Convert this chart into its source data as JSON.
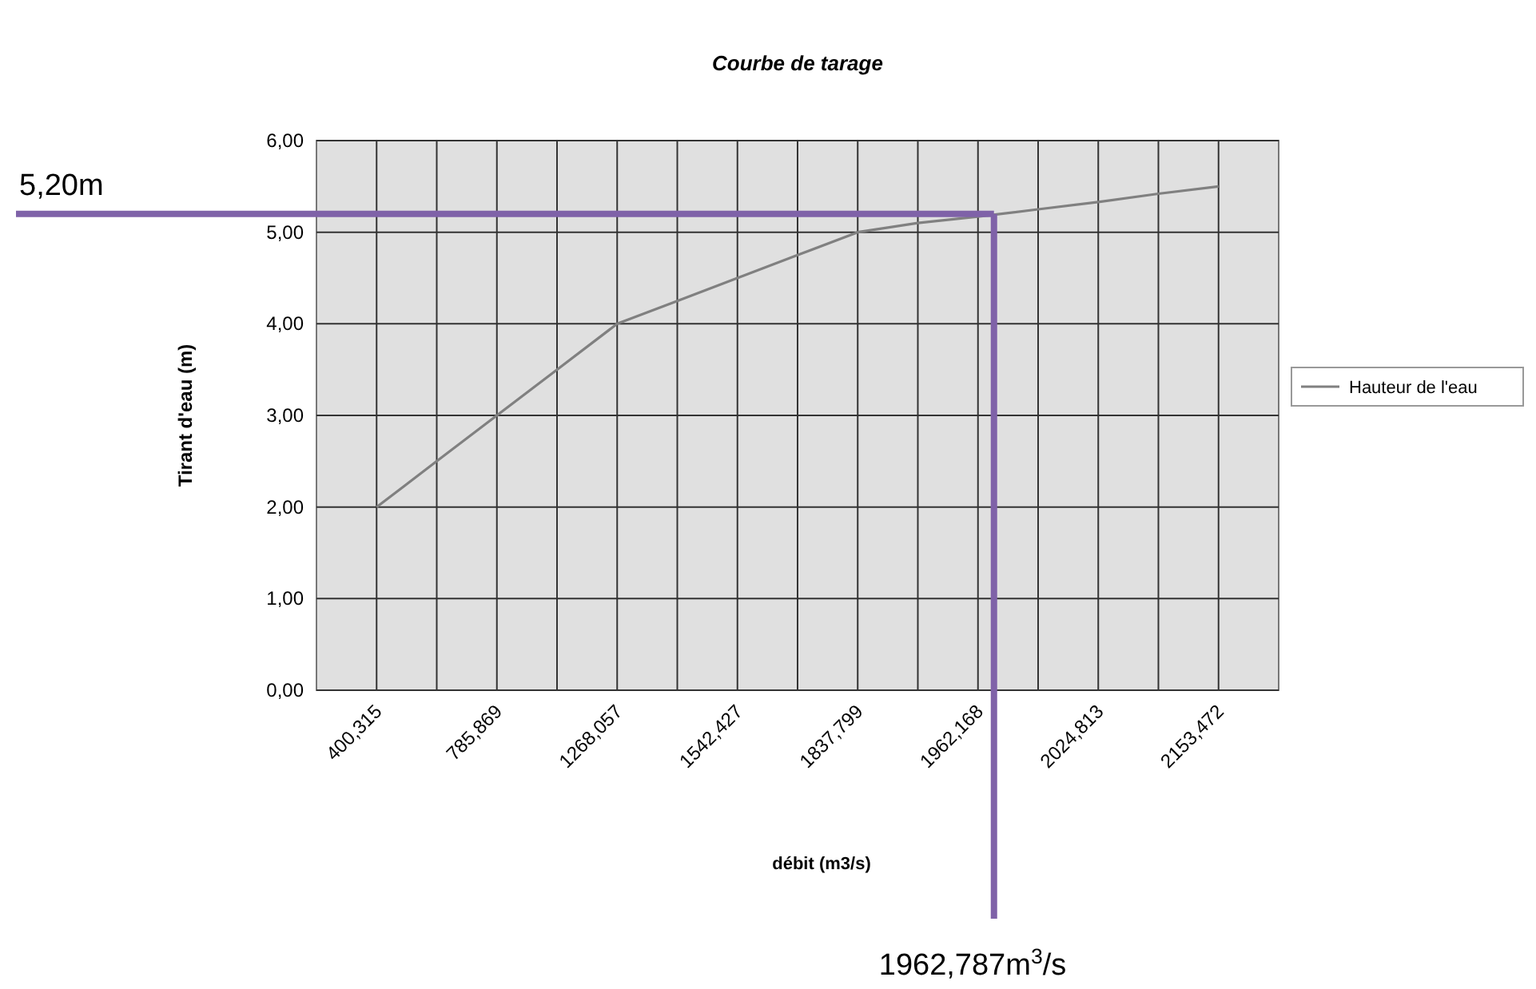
{
  "chart_data": {
    "type": "line",
    "title": "Courbe de tarage",
    "xlabel": "débit (m3/s)",
    "ylabel": "Tirant d'eau (m)",
    "categories": [
      "400,315",
      null,
      "785,869",
      null,
      "1268,057",
      null,
      "1542,427",
      null,
      "1837,799",
      null,
      "1962,168",
      null,
      "2024,813",
      null,
      "2153,472"
    ],
    "series": [
      {
        "name": "Hauteur de l'eau",
        "color": "#808080",
        "values": [
          2.0,
          2.5,
          3.0,
          3.5,
          4.0,
          4.25,
          4.5,
          4.75,
          5.0,
          5.1,
          5.17,
          5.25,
          5.33,
          5.42,
          5.5
        ]
      }
    ],
    "ylim": [
      0,
      6
    ],
    "yticks": [
      {
        "value": 0,
        "label": "0,00"
      },
      {
        "value": 1,
        "label": "1,00"
      },
      {
        "value": 2,
        "label": "2,00"
      },
      {
        "value": 3,
        "label": "3,00"
      },
      {
        "value": 4,
        "label": "4,00"
      },
      {
        "value": 5,
        "label": "5,00"
      },
      {
        "value": 6,
        "label": "6,00"
      }
    ],
    "grid": true,
    "legend": "right",
    "marker": "none",
    "line_style": "solid",
    "ref_lines": [
      {
        "axis": "y",
        "value": 5.2,
        "label": "5,20m",
        "color": "#7f62a8"
      },
      {
        "axis": "x",
        "value": "1962,168",
        "label": "1962,787m$^{3}$/s",
        "color": "#7f62a8"
      }
    ]
  }
}
